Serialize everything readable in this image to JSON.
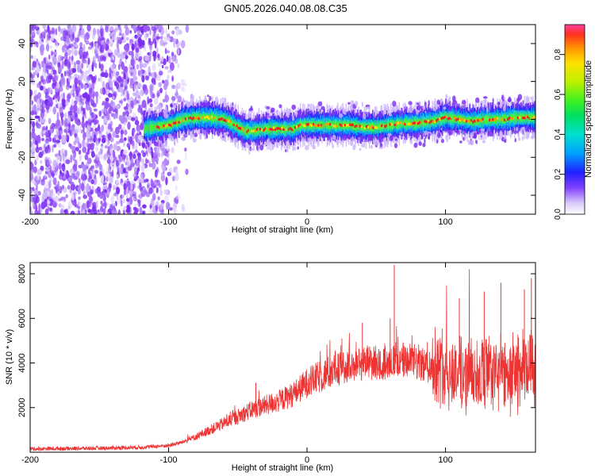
{
  "title": "GN05.2026.040.08.08.C35",
  "chart_data": [
    {
      "type": "heatmap",
      "name": "spectrogram",
      "xlabel": "Height of straight line (km)",
      "ylabel": "Frequency (Hz)",
      "xlim": [
        -200,
        165
      ],
      "ylim": [
        -50,
        50
      ],
      "xticks": [
        -200,
        -100,
        0,
        100
      ],
      "yticks": [
        -40,
        -20,
        0,
        20,
        40
      ],
      "colorbar": {
        "label": "Normalized spectral amplitude",
        "range": [
          0.0,
          0.95
        ],
        "ticks": [
          0.0,
          0.2,
          0.4,
          0.6,
          0.8
        ]
      },
      "noise_region": {
        "x_start": -200,
        "x_end": -85,
        "dense_end": -115
      },
      "ridge": {
        "x": [
          -118,
          -110,
          -100,
          -90,
          -80,
          -70,
          -60,
          -50,
          -45,
          -40,
          -30,
          -20,
          -10,
          -5,
          0,
          10,
          20,
          30,
          40,
          50,
          60,
          70,
          80,
          90,
          100,
          110,
          120,
          130,
          140,
          150,
          160,
          165
        ],
        "y": [
          -5,
          -4,
          -3,
          0,
          1,
          1,
          0,
          -4,
          -6,
          -6,
          -5,
          -5,
          -5,
          -3,
          -3,
          -3,
          -3,
          -3,
          -4,
          -4,
          -3,
          -2,
          -2,
          -1,
          1,
          0,
          -1,
          0,
          0,
          1,
          1,
          1
        ]
      }
    },
    {
      "type": "line",
      "name": "snr",
      "xlabel": "Height of straight line (km)",
      "ylabel": "SNR (10 * v/v)",
      "xlim": [
        -200,
        165
      ],
      "ylim": [
        0,
        8500
      ],
      "xticks": [
        -200,
        -100,
        0,
        100
      ],
      "yticks": [
        2000,
        4000,
        6000,
        8000
      ],
      "color": "#ee3333",
      "envelope": {
        "x": [
          -200,
          -150,
          -120,
          -100,
          -90,
          -80,
          -70,
          -60,
          -50,
          -40,
          -30,
          -20,
          -10,
          0,
          10,
          20,
          30,
          40,
          60,
          80,
          100,
          110,
          120,
          130,
          140,
          150,
          165
        ],
        "y": [
          150,
          180,
          220,
          300,
          450,
          700,
          1000,
          1300,
          1600,
          1900,
          2100,
          2300,
          2600,
          3100,
          3400,
          3700,
          3900,
          4000,
          4100,
          4000,
          3700,
          3500,
          3500,
          3500,
          3500,
          3600,
          3800
        ]
      },
      "spikes": [
        {
          "x": -80,
          "y": 700
        },
        {
          "x": -58,
          "y": 1700
        },
        {
          "x": -37,
          "y": 3100
        },
        {
          "x": 0,
          "y": 3000
        },
        {
          "x": 40,
          "y": 5800
        },
        {
          "x": 60,
          "y": 6000
        },
        {
          "x": 63,
          "y": 8400
        },
        {
          "x": 110,
          "y": 6900
        },
        {
          "x": 128,
          "y": 7200
        },
        {
          "x": 140,
          "y": 7600
        },
        {
          "x": 157,
          "y": 7300
        },
        {
          "x": 162,
          "y": 7800
        }
      ]
    }
  ]
}
